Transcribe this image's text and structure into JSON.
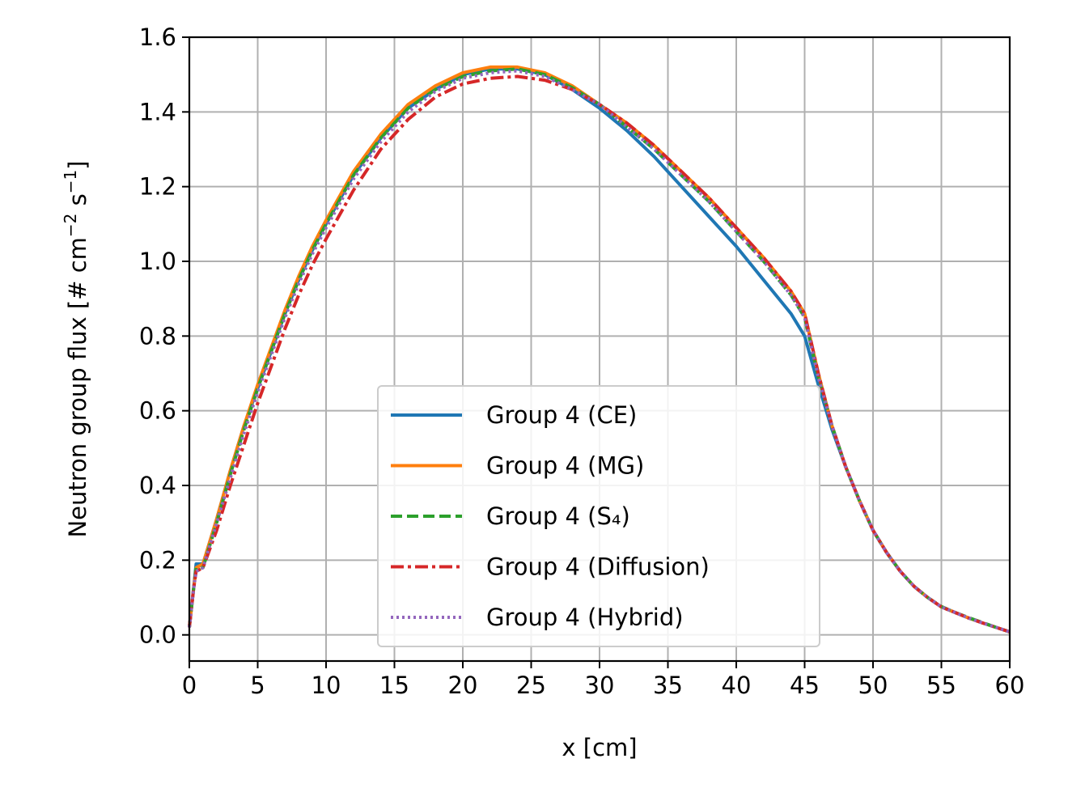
{
  "chart_data": {
    "type": "line",
    "title": "",
    "xlabel": "x [cm]",
    "ylabel": {
      "main": "Neutron group flux [# cm",
      "exp1": "−2",
      "mid": " s",
      "exp2": "−1",
      "end": "]"
    },
    "xlim": [
      0,
      60
    ],
    "ylim": [
      -0.07,
      1.6
    ],
    "xticks": [
      "0",
      "5",
      "10",
      "15",
      "20",
      "25",
      "30",
      "35",
      "40",
      "45",
      "50",
      "55",
      "60"
    ],
    "yticks": [
      "0.0",
      "0.2",
      "0.4",
      "0.6",
      "0.8",
      "1.0",
      "1.2",
      "1.4",
      "1.6"
    ],
    "grid": true,
    "legend_position": "lower-center",
    "series": [
      {
        "name": "Group 4 (CE)",
        "color": "#1f77b4",
        "dash": "solid",
        "points": [
          [
            0,
            0.02
          ],
          [
            0.3,
            0.12
          ],
          [
            0.5,
            0.19
          ],
          [
            1,
            0.19
          ],
          [
            2,
            0.31
          ],
          [
            3,
            0.44
          ],
          [
            4,
            0.56
          ],
          [
            5,
            0.66
          ],
          [
            6,
            0.76
          ],
          [
            7,
            0.86
          ],
          [
            8,
            0.95
          ],
          [
            9,
            1.03
          ],
          [
            10,
            1.1
          ],
          [
            12,
            1.23
          ],
          [
            14,
            1.33
          ],
          [
            16,
            1.41
          ],
          [
            18,
            1.46
          ],
          [
            20,
            1.5
          ],
          [
            22,
            1.515
          ],
          [
            24,
            1.515
          ],
          [
            26,
            1.5
          ],
          [
            28,
            1.46
          ],
          [
            30,
            1.41
          ],
          [
            32,
            1.35
          ],
          [
            34,
            1.28
          ],
          [
            36,
            1.2
          ],
          [
            38,
            1.12
          ],
          [
            40,
            1.04
          ],
          [
            42,
            0.95
          ],
          [
            44,
            0.86
          ],
          [
            45,
            0.8
          ],
          [
            46,
            0.67
          ],
          [
            47,
            0.55
          ],
          [
            48,
            0.45
          ],
          [
            49,
            0.36
          ],
          [
            50,
            0.28
          ],
          [
            51,
            0.22
          ],
          [
            52,
            0.17
          ],
          [
            53,
            0.13
          ],
          [
            54,
            0.1
          ],
          [
            55,
            0.075
          ],
          [
            56,
            0.06
          ],
          [
            57,
            0.045
          ],
          [
            58,
            0.032
          ],
          [
            59,
            0.02
          ],
          [
            60,
            0.008
          ]
        ]
      },
      {
        "name": "Group 4 (MG)",
        "color": "#ff7f0e",
        "dash": "solid",
        "points": [
          [
            0,
            0.02
          ],
          [
            0.3,
            0.12
          ],
          [
            0.5,
            0.18
          ],
          [
            1,
            0.19
          ],
          [
            2,
            0.31
          ],
          [
            3,
            0.44
          ],
          [
            4,
            0.56
          ],
          [
            5,
            0.67
          ],
          [
            6,
            0.77
          ],
          [
            7,
            0.87
          ],
          [
            8,
            0.96
          ],
          [
            9,
            1.04
          ],
          [
            10,
            1.11
          ],
          [
            12,
            1.24
          ],
          [
            14,
            1.34
          ],
          [
            16,
            1.42
          ],
          [
            18,
            1.47
          ],
          [
            20,
            1.505
          ],
          [
            22,
            1.52
          ],
          [
            24,
            1.52
          ],
          [
            26,
            1.505
          ],
          [
            28,
            1.47
          ],
          [
            30,
            1.42
          ],
          [
            32,
            1.37
          ],
          [
            34,
            1.31
          ],
          [
            36,
            1.24
          ],
          [
            38,
            1.17
          ],
          [
            40,
            1.09
          ],
          [
            42,
            1.01
          ],
          [
            44,
            0.92
          ],
          [
            45,
            0.86
          ],
          [
            46,
            0.7
          ],
          [
            47,
            0.56
          ],
          [
            48,
            0.45
          ],
          [
            49,
            0.36
          ],
          [
            50,
            0.28
          ],
          [
            51,
            0.22
          ],
          [
            52,
            0.17
          ],
          [
            53,
            0.13
          ],
          [
            54,
            0.1
          ],
          [
            55,
            0.075
          ],
          [
            56,
            0.06
          ],
          [
            57,
            0.045
          ],
          [
            58,
            0.032
          ],
          [
            59,
            0.02
          ],
          [
            60,
            0.008
          ]
        ]
      },
      {
        "name": "Group 4 (S₄)",
        "color": "#2ca02c",
        "dash": "dashed",
        "points": [
          [
            0,
            0.02
          ],
          [
            0.3,
            0.12
          ],
          [
            0.5,
            0.18
          ],
          [
            1,
            0.18
          ],
          [
            2,
            0.3
          ],
          [
            3,
            0.43
          ],
          [
            4,
            0.55
          ],
          [
            5,
            0.66
          ],
          [
            6,
            0.76
          ],
          [
            7,
            0.86
          ],
          [
            8,
            0.95
          ],
          [
            9,
            1.03
          ],
          [
            10,
            1.1
          ],
          [
            12,
            1.23
          ],
          [
            14,
            1.33
          ],
          [
            16,
            1.41
          ],
          [
            18,
            1.46
          ],
          [
            20,
            1.495
          ],
          [
            22,
            1.51
          ],
          [
            24,
            1.515
          ],
          [
            26,
            1.5
          ],
          [
            28,
            1.465
          ],
          [
            30,
            1.42
          ],
          [
            32,
            1.36
          ],
          [
            34,
            1.3
          ],
          [
            36,
            1.23
          ],
          [
            38,
            1.16
          ],
          [
            40,
            1.08
          ],
          [
            42,
            1.0
          ],
          [
            44,
            0.91
          ],
          [
            45,
            0.85
          ],
          [
            46,
            0.69
          ],
          [
            47,
            0.56
          ],
          [
            48,
            0.45
          ],
          [
            49,
            0.36
          ],
          [
            50,
            0.28
          ],
          [
            51,
            0.22
          ],
          [
            52,
            0.17
          ],
          [
            53,
            0.13
          ],
          [
            54,
            0.1
          ],
          [
            55,
            0.076
          ],
          [
            56,
            0.06
          ],
          [
            57,
            0.046
          ],
          [
            58,
            0.033
          ],
          [
            59,
            0.02
          ],
          [
            60,
            0.008
          ]
        ]
      },
      {
        "name": "Group 4 (Diffusion)",
        "color": "#d62728",
        "dash": "dashdot",
        "points": [
          [
            0,
            0.02
          ],
          [
            0.3,
            0.12
          ],
          [
            0.5,
            0.17
          ],
          [
            1,
            0.18
          ],
          [
            2,
            0.28
          ],
          [
            3,
            0.4
          ],
          [
            4,
            0.51
          ],
          [
            5,
            0.62
          ],
          [
            6,
            0.72
          ],
          [
            7,
            0.82
          ],
          [
            8,
            0.91
          ],
          [
            9,
            0.99
          ],
          [
            10,
            1.06
          ],
          [
            12,
            1.19
          ],
          [
            14,
            1.3
          ],
          [
            16,
            1.38
          ],
          [
            18,
            1.44
          ],
          [
            20,
            1.475
          ],
          [
            22,
            1.49
          ],
          [
            24,
            1.495
          ],
          [
            26,
            1.485
          ],
          [
            28,
            1.46
          ],
          [
            30,
            1.42
          ],
          [
            32,
            1.37
          ],
          [
            34,
            1.31
          ],
          [
            36,
            1.24
          ],
          [
            38,
            1.17
          ],
          [
            40,
            1.09
          ],
          [
            42,
            1.01
          ],
          [
            44,
            0.92
          ],
          [
            45,
            0.86
          ],
          [
            46,
            0.7
          ],
          [
            47,
            0.56
          ],
          [
            48,
            0.45
          ],
          [
            49,
            0.36
          ],
          [
            50,
            0.28
          ],
          [
            51,
            0.22
          ],
          [
            52,
            0.17
          ],
          [
            53,
            0.13
          ],
          [
            54,
            0.1
          ],
          [
            55,
            0.075
          ],
          [
            56,
            0.06
          ],
          [
            57,
            0.045
          ],
          [
            58,
            0.032
          ],
          [
            59,
            0.02
          ],
          [
            60,
            0.008
          ]
        ]
      },
      {
        "name": "Group 4 (Hybrid)",
        "color": "#9467bd",
        "dash": "dotted",
        "points": [
          [
            0,
            0.02
          ],
          [
            0.3,
            0.12
          ],
          [
            0.5,
            0.17
          ],
          [
            1,
            0.18
          ],
          [
            2,
            0.3
          ],
          [
            3,
            0.42
          ],
          [
            4,
            0.54
          ],
          [
            5,
            0.65
          ],
          [
            6,
            0.75
          ],
          [
            7,
            0.85
          ],
          [
            8,
            0.94
          ],
          [
            9,
            1.02
          ],
          [
            10,
            1.09
          ],
          [
            12,
            1.22
          ],
          [
            14,
            1.32
          ],
          [
            16,
            1.4
          ],
          [
            18,
            1.455
          ],
          [
            20,
            1.49
          ],
          [
            22,
            1.505
          ],
          [
            24,
            1.51
          ],
          [
            26,
            1.495
          ],
          [
            28,
            1.46
          ],
          [
            30,
            1.42
          ],
          [
            32,
            1.36
          ],
          [
            34,
            1.3
          ],
          [
            36,
            1.23
          ],
          [
            38,
            1.16
          ],
          [
            40,
            1.08
          ],
          [
            42,
            1.0
          ],
          [
            44,
            0.91
          ],
          [
            45,
            0.85
          ],
          [
            46,
            0.69
          ],
          [
            47,
            0.56
          ],
          [
            48,
            0.45
          ],
          [
            49,
            0.36
          ],
          [
            50,
            0.28
          ],
          [
            51,
            0.22
          ],
          [
            52,
            0.17
          ],
          [
            53,
            0.13
          ],
          [
            54,
            0.1
          ],
          [
            55,
            0.075
          ],
          [
            56,
            0.06
          ],
          [
            57,
            0.045
          ],
          [
            58,
            0.032
          ],
          [
            59,
            0.02
          ],
          [
            60,
            0.008
          ]
        ]
      }
    ]
  }
}
